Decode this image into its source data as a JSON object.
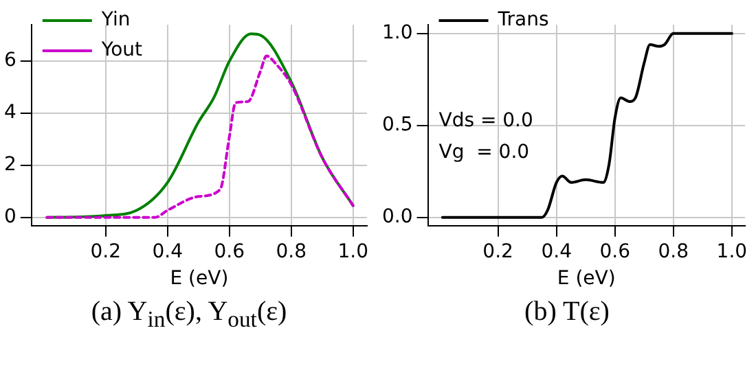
{
  "chart_data": [
    {
      "type": "line",
      "title": "(a) Y$_{in}$(ε), Y$_{out}$(ε)",
      "xlabel": "E (eV)",
      "xlim": [
        -0.04,
        1.045
      ],
      "ylim": [
        -0.32,
        7.4
      ],
      "xticks": [
        0.2,
        0.4,
        0.6,
        0.8,
        {
          "value": 1,
          "label": "1.0"
        }
      ],
      "yticks": [
        0,
        2,
        4,
        6
      ],
      "grid": true,
      "legend": "top left",
      "marker": "none",
      "series": [
        {
          "name": "Yin",
          "color": "#008000",
          "line_style": "solid",
          "x": [
            0.01,
            0.1,
            0.2,
            0.3,
            0.4,
            0.5,
            0.55,
            0.6,
            0.67,
            0.7,
            0.8,
            0.9,
            1.0
          ],
          "values": [
            0,
            0.01,
            0.07,
            0.27,
            1.34,
            3.66,
            4.6,
            6.0,
            7.05,
            7.0,
            5.2,
            2.3,
            0.45
          ]
        },
        {
          "name": "Yout",
          "color": "#cc00cc",
          "line_style": "dashed",
          "x": [
            0.01,
            0.2,
            0.36,
            0.4,
            0.5,
            0.57,
            0.6,
            0.62,
            0.66,
            0.7,
            0.72,
            0.75,
            0.8,
            0.9,
            1.0
          ],
          "values": [
            0,
            0,
            0,
            0.27,
            0.8,
            1.07,
            3.1,
            4.4,
            4.45,
            5.6,
            6.2,
            5.9,
            5.1,
            2.3,
            0.45
          ]
        }
      ]
    },
    {
      "type": "line",
      "title": "(b) T(ε)",
      "xlabel": "E (eV)",
      "xlim": [
        -0.04,
        1.045
      ],
      "ylim": [
        -0.045,
        1.048
      ],
      "xticks": [
        0.2,
        0.4,
        0.6,
        0.8,
        {
          "value": 1,
          "label": "1.0"
        }
      ],
      "yticks": [
        {
          "value": 0,
          "label": "0.0"
        },
        0.5,
        {
          "value": 1,
          "label": "1.0"
        }
      ],
      "grid": true,
      "legend": "top left",
      "marker": "none",
      "annotations": [
        "Vds = 0.0",
        "Vg  = 0.0"
      ],
      "series": [
        {
          "name": "Trans",
          "color": "#000000",
          "line_style": "solid",
          "x": [
            0.01,
            0.2,
            0.35,
            0.37,
            0.4,
            0.42,
            0.45,
            0.5,
            0.56,
            0.58,
            0.6,
            0.62,
            0.65,
            0.67,
            0.7,
            0.72,
            0.75,
            0.77,
            0.8,
            0.9,
            1.0
          ],
          "values": [
            0,
            0,
            0,
            0.04,
            0.19,
            0.225,
            0.19,
            0.205,
            0.19,
            0.29,
            0.54,
            0.65,
            0.63,
            0.65,
            0.84,
            0.94,
            0.93,
            0.94,
            1.0,
            1.0,
            1.0
          ]
        }
      ]
    }
  ]
}
